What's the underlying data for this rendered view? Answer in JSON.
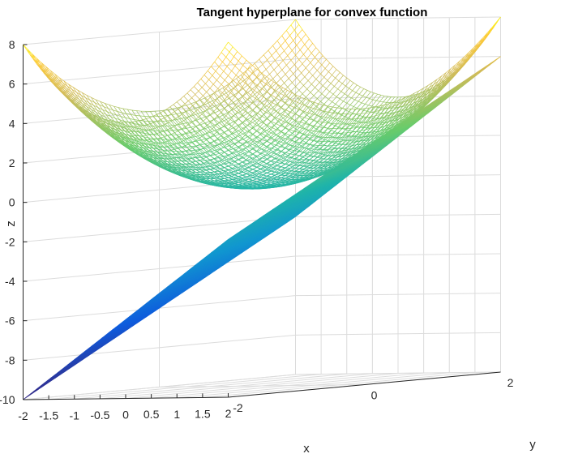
{
  "chart_data": {
    "type": "surface",
    "title": "Tangent hyperplane for convex function",
    "xlabel": "x",
    "ylabel": "y",
    "zlabel": "z",
    "xlim": [
      -2,
      2
    ],
    "ylim": [
      -2,
      2
    ],
    "zlim": [
      -10,
      8
    ],
    "x_ticks": [
      "-2",
      "-1.5",
      "-1",
      "-0.5",
      "0",
      "0.5",
      "1",
      "1.5",
      "2"
    ],
    "y_ticks": [
      "-2",
      "0",
      "2"
    ],
    "z_ticks": [
      "8",
      "6",
      "4",
      "2",
      "0",
      "-2",
      "-4",
      "-6",
      "-8",
      "-10"
    ],
    "grid": true,
    "colormap": "parula",
    "series": [
      {
        "name": "",
        "expression": "x^2 + y^2",
        "type": "mesh"
      },
      {
        "name": "",
        "expression": "2*x + 2*y - 2",
        "type": "mesh"
      }
    ]
  },
  "colors": {
    "parula_low": "#352a87",
    "parula_mid_low": "#0f8dd6",
    "parula_mid": "#20b5a8",
    "parula_mid_high": "#81c97e",
    "parula_high": "#f9dd4a",
    "parula_top": "#f9fb0e",
    "grid": "#dcdcdc"
  }
}
